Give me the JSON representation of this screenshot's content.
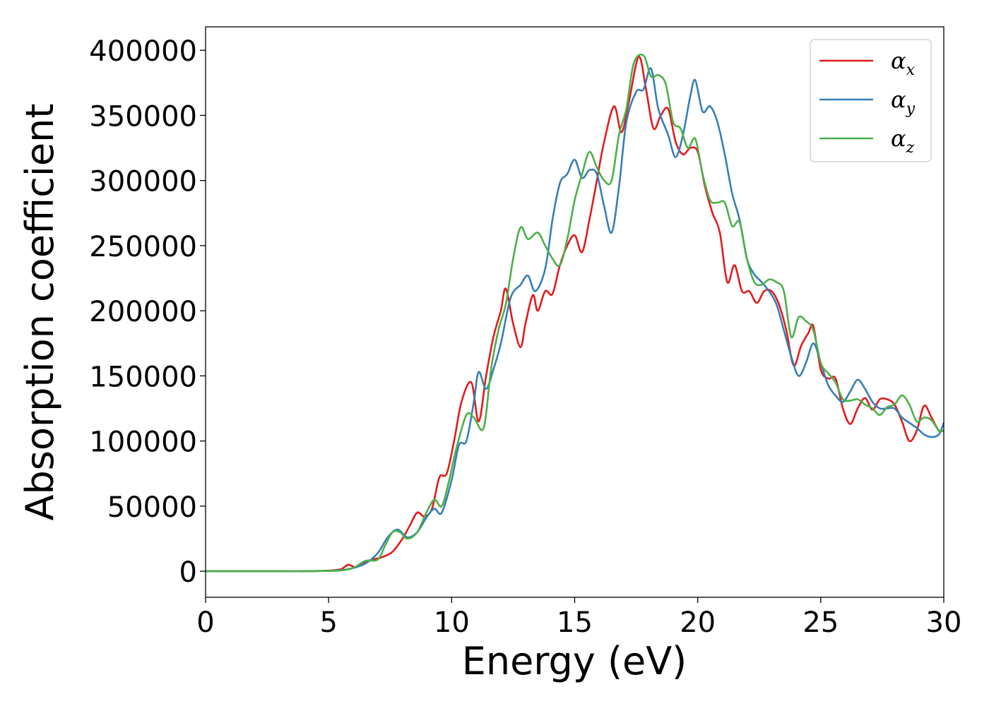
{
  "chart_data": {
    "type": "line",
    "title": "",
    "xlabel": "Energy (eV)",
    "ylabel": "Absorption coefficient",
    "xlim": [
      0,
      30
    ],
    "ylim": [
      -20000,
      418000
    ],
    "xticks": [
      0,
      5,
      10,
      15,
      20,
      25,
      30
    ],
    "yticks": [
      0,
      50000,
      100000,
      150000,
      200000,
      250000,
      300000,
      350000,
      400000
    ],
    "grid": false,
    "legend_position": "top-right",
    "series": [
      {
        "name": "α",
        "subscript": "x",
        "color": "#e41a1c",
        "x": [
          0,
          1,
          2,
          3,
          4,
          5,
          5.5,
          5.8,
          6.1,
          6.4,
          6.8,
          7.2,
          7.6,
          8.0,
          8.3,
          8.6,
          8.9,
          9.2,
          9.5,
          9.8,
          10.1,
          10.4,
          10.8,
          11.1,
          11.4,
          11.7,
          12.0,
          12.2,
          12.5,
          12.8,
          13.0,
          13.3,
          13.5,
          13.8,
          14.1,
          14.4,
          14.7,
          15.0,
          15.3,
          15.6,
          15.9,
          16.2,
          16.6,
          16.9,
          17.2,
          17.6,
          17.9,
          18.2,
          18.5,
          18.8,
          19.1,
          19.4,
          19.7,
          20.0,
          20.3,
          20.6,
          20.9,
          21.2,
          21.5,
          21.8,
          22.1,
          22.4,
          22.7,
          23.0,
          23.3,
          23.6,
          23.9,
          24.2,
          24.5,
          24.7,
          25.0,
          25.3,
          25.6,
          25.9,
          26.2,
          26.5,
          26.8,
          27.1,
          27.4,
          27.7,
          28.0,
          28.3,
          28.6,
          28.9,
          29.2,
          29.5,
          29.8,
          30
        ],
        "values": [
          0,
          0,
          0,
          0,
          0,
          500,
          1500,
          5000,
          3000,
          6000,
          9000,
          11000,
          15000,
          25000,
          35000,
          45000,
          42000,
          48000,
          72000,
          75000,
          100000,
          130000,
          145000,
          115000,
          150000,
          180000,
          200000,
          217000,
          190000,
          172000,
          190000,
          212000,
          200000,
          215000,
          213000,
          235000,
          250000,
          258000,
          245000,
          270000,
          300000,
          330000,
          357000,
          337000,
          360000,
          395000,
          370000,
          340000,
          350000,
          355000,
          330000,
          320000,
          325000,
          322000,
          295000,
          275000,
          260000,
          222000,
          235000,
          215000,
          215000,
          206000,
          215000,
          215000,
          205000,
          185000,
          158000,
          173000,
          183000,
          188000,
          155000,
          148000,
          148000,
          125000,
          113000,
          125000,
          133000,
          124000,
          132000,
          132000,
          128000,
          115000,
          100000,
          108000,
          127000,
          118000,
          108000,
          108000
        ]
      },
      {
        "name": "α",
        "subscript": "y",
        "color": "#377eb8",
        "x": [
          0,
          1,
          2,
          3,
          4,
          5,
          5.5,
          6.0,
          6.5,
          7.0,
          7.4,
          7.8,
          8.2,
          8.6,
          9.0,
          9.3,
          9.6,
          10.0,
          10.3,
          10.6,
          10.9,
          11.1,
          11.4,
          11.7,
          12.0,
          12.4,
          12.8,
          13.1,
          13.4,
          13.8,
          14.1,
          14.4,
          14.7,
          15.0,
          15.3,
          15.6,
          15.9,
          16.2,
          16.5,
          16.8,
          17.1,
          17.5,
          17.8,
          18.1,
          18.4,
          18.8,
          19.1,
          19.4,
          19.7,
          19.9,
          20.2,
          20.5,
          20.8,
          21.1,
          21.4,
          21.7,
          22.0,
          22.3,
          22.6,
          22.9,
          23.2,
          23.5,
          23.8,
          24.1,
          24.4,
          24.7,
          25.0,
          25.3,
          25.6,
          25.9,
          26.2,
          26.5,
          26.8,
          27.1,
          27.4,
          27.7,
          28.0,
          28.3,
          28.6,
          28.9,
          29.2,
          29.5,
          29.8,
          30
        ],
        "values": [
          0,
          0,
          0,
          0,
          0,
          300,
          800,
          2500,
          6000,
          14000,
          26000,
          32000,
          26000,
          30000,
          42000,
          48000,
          45000,
          70000,
          97000,
          100000,
          130000,
          153000,
          140000,
          155000,
          175000,
          210000,
          220000,
          227000,
          215000,
          232000,
          270000,
          298000,
          305000,
          316000,
          302000,
          308000,
          305000,
          280000,
          260000,
          295000,
          345000,
          368000,
          370000,
          386000,
          355000,
          335000,
          318000,
          335000,
          365000,
          377000,
          353000,
          357000,
          345000,
          320000,
          290000,
          270000,
          240000,
          228000,
          222000,
          215000,
          205000,
          185000,
          165000,
          150000,
          160000,
          175000,
          160000,
          143000,
          135000,
          130000,
          138000,
          147000,
          140000,
          130000,
          125000,
          125000,
          125000,
          118000,
          114000,
          110000,
          105000,
          103000,
          105000,
          114000
        ]
      },
      {
        "name": "α",
        "subscript": "z",
        "color": "#4daf4a",
        "x": [
          0,
          1,
          2,
          3,
          4,
          5,
          5.5,
          6.0,
          6.5,
          7.0,
          7.3,
          7.6,
          7.9,
          8.2,
          8.6,
          9.0,
          9.3,
          9.6,
          9.9,
          10.2,
          10.6,
          10.9,
          11.3,
          11.6,
          11.9,
          12.2,
          12.5,
          12.8,
          13.1,
          13.5,
          13.8,
          14.1,
          14.4,
          14.7,
          15.0,
          15.3,
          15.6,
          15.9,
          16.2,
          16.5,
          16.8,
          17.1,
          17.4,
          17.8,
          18.1,
          18.4,
          18.7,
          19.0,
          19.3,
          19.6,
          19.9,
          20.2,
          20.5,
          20.8,
          21.1,
          21.4,
          21.7,
          22.0,
          22.3,
          22.6,
          22.9,
          23.2,
          23.5,
          23.8,
          24.1,
          24.4,
          24.7,
          25.0,
          25.3,
          25.6,
          25.9,
          26.2,
          26.5,
          26.8,
          27.1,
          27.4,
          27.7,
          28.0,
          28.3,
          28.6,
          28.9,
          29.2,
          29.5,
          29.8,
          30
        ],
        "values": [
          0,
          0,
          0,
          0,
          0,
          300,
          600,
          2500,
          8000,
          9000,
          20000,
          30000,
          30000,
          25000,
          30000,
          46000,
          55000,
          50000,
          70000,
          95000,
          120000,
          118000,
          110000,
          155000,
          185000,
          205000,
          240000,
          264000,
          255000,
          260000,
          250000,
          240000,
          235000,
          255000,
          285000,
          305000,
          322000,
          310000,
          300000,
          300000,
          335000,
          355000,
          390000,
          396000,
          380000,
          381000,
          374000,
          345000,
          340000,
          325000,
          332000,
          305000,
          285000,
          283000,
          283000,
          265000,
          268000,
          240000,
          222000,
          220000,
          224000,
          222000,
          215000,
          180000,
          195000,
          192000,
          185000,
          160000,
          152000,
          145000,
          132000,
          131000,
          132000,
          128000,
          125000,
          120000,
          126000,
          128000,
          135000,
          128000,
          115000,
          118000,
          116000,
          108000,
          108000
        ]
      }
    ]
  }
}
